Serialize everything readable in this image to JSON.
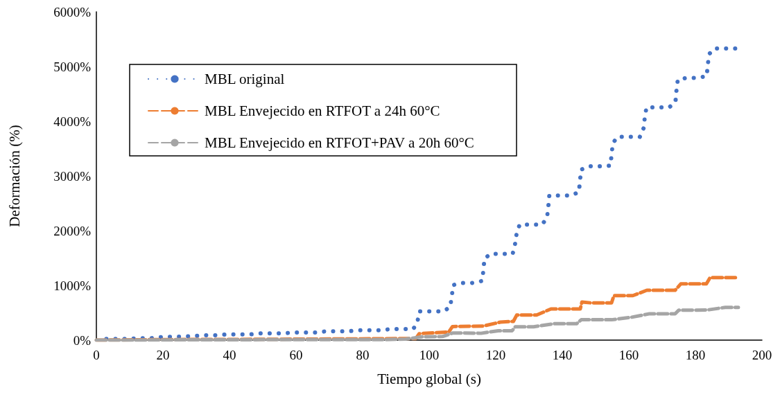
{
  "chart_data": {
    "type": "line",
    "xlabel": "Tiempo global (s)",
    "ylabel": "Deformación (%)",
    "xlim": [
      0,
      200
    ],
    "xticks": [
      0,
      20,
      40,
      60,
      80,
      100,
      120,
      140,
      160,
      180,
      200
    ],
    "ylim": [
      0,
      6000
    ],
    "yticks": [
      {
        "value": 0,
        "label": "0%"
      },
      {
        "value": 1000,
        "label": "1000%"
      },
      {
        "value": 2000,
        "label": "2000%"
      },
      {
        "value": 3000,
        "label": "3000%"
      },
      {
        "value": 4000,
        "label": "4000%"
      },
      {
        "value": 5000,
        "label": "5000%"
      },
      {
        "value": 6000,
        "label": "6000%"
      }
    ],
    "grid": false,
    "legend": "top left",
    "marker": "none",
    "series": [
      {
        "name": "MBL original",
        "color": "#4472c4",
        "line_style": "dotted",
        "x": [
          3.0,
          6.3,
          9.6,
          12.9,
          16.3,
          19.5,
          22.8,
          26.1,
          29.4,
          32.6,
          35.9,
          39.3,
          42.6,
          46.0,
          49.2,
          52.5,
          55.8,
          59.0,
          62.4,
          65.8,
          68.9,
          72.2,
          75.6,
          78.8,
          82.1,
          85.5,
          88.7,
          91.9,
          95.2,
          96.4,
          97.1,
          100.9,
          104.2,
          106.3,
          106.8,
          107.2,
          109.6,
          112.8,
          115.9,
          116.3,
          116.6,
          118.4,
          121.8,
          125.1,
          125.8,
          126.3,
          127.2,
          130.5,
          133.9,
          135.4,
          135.8,
          136.1,
          139.2,
          142.6,
          145.0,
          145.3,
          145.7,
          147.9,
          151.2,
          154.5,
          154.8,
          155.2,
          156.6,
          159.9,
          163.3,
          164.4,
          164.8,
          165.3,
          168.7,
          172.1,
          174.0,
          174.3,
          174.7,
          177.3,
          180.6,
          183.4,
          183.7,
          184.2,
          185.8,
          189.2,
          192.5
        ],
        "values": [
          21,
          21,
          21,
          34,
          34,
          55,
          63,
          63,
          76,
          89,
          89,
          105,
          105,
          105,
          122,
          122,
          122,
          139,
          139,
          139,
          160,
          160,
          160,
          181,
          181,
          181,
          203,
          203,
          203,
          316,
          525,
          525,
          525,
          603,
          800,
          1005,
          1043,
          1043,
          1082,
          1278,
          1484,
          1577,
          1577,
          1577,
          1753,
          1958,
          2111,
          2111,
          2111,
          2232,
          2437,
          2642,
          2642,
          2642,
          2705,
          2911,
          3116,
          3176,
          3176,
          3189,
          3394,
          3599,
          3714,
          3714,
          3714,
          3868,
          4073,
          4253,
          4253,
          4253,
          4351,
          4556,
          4757,
          4791,
          4791,
          4825,
          5030,
          5232,
          5329,
          5329,
          5329
        ]
      },
      {
        "name": "MBL Envejecido en RTFOT a 24h 60°C",
        "color": "#ed7d31",
        "line_style": "dashed",
        "x": [
          0,
          19,
          48,
          67,
          85,
          96,
          97,
          100.2,
          105.9,
          107,
          116.2,
          121.4,
          125.3,
          126.3,
          132.3,
          136.6,
          145.4,
          145.9,
          148.7,
          154.8,
          155.5,
          161.2,
          165.4,
          173.9,
          175.6,
          181.9,
          183.3,
          184.4,
          192.8
        ],
        "values": [
          0,
          10,
          15,
          20,
          25,
          30,
          118,
          129,
          150,
          248,
          257,
          329,
          342,
          458,
          458,
          570,
          570,
          697,
          680,
          680,
          813,
          813,
          911,
          911,
          1027,
          1027,
          1027,
          1142,
          1142
        ]
      },
      {
        "name": "MBL Envejecido en RTFOT+PAV a 20h 60°C",
        "color": "#a5a5a5",
        "line_style": "dashed",
        "x": [
          0,
          12,
          18.3,
          24.5,
          37,
          43.3,
          49.5,
          61.7,
          67.9,
          74.5,
          86.7,
          93,
          98,
          104,
          107,
          110,
          115.6,
          120.8,
          124.9,
          125.9,
          131.4,
          137.7,
          144.3,
          145.7,
          154.8,
          160.9,
          166,
          173.9,
          175,
          177.3,
          183.5,
          189,
          192.9
        ],
        "values": [
          0,
          0,
          3,
          5,
          5,
          6,
          8,
          8,
          9,
          10,
          10,
          20,
          60,
          65,
          129,
          129,
          125,
          172,
          172,
          244,
          244,
          300,
          300,
          372,
          372,
          419,
          480,
          480,
          548,
          548,
          550,
          599,
          599
        ]
      }
    ]
  }
}
